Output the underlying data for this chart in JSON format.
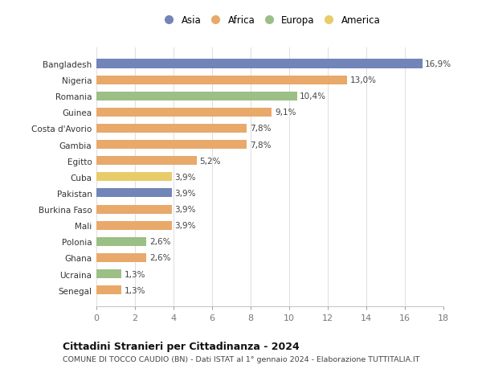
{
  "categories": [
    "Senegal",
    "Ucraina",
    "Ghana",
    "Polonia",
    "Mali",
    "Burkina Faso",
    "Pakistan",
    "Cuba",
    "Egitto",
    "Gambia",
    "Costa d'Avorio",
    "Guinea",
    "Romania",
    "Nigeria",
    "Bangladesh"
  ],
  "values": [
    1.3,
    1.3,
    2.6,
    2.6,
    3.9,
    3.9,
    3.9,
    3.9,
    5.2,
    7.8,
    7.8,
    9.1,
    10.4,
    13.0,
    16.9
  ],
  "colors": [
    "#e8a96a",
    "#9bbf85",
    "#e8a96a",
    "#9bbf85",
    "#e8a96a",
    "#e8a96a",
    "#7285b8",
    "#e8cc6a",
    "#e8a96a",
    "#e8a96a",
    "#e8a96a",
    "#e8a96a",
    "#9bbf85",
    "#e8a96a",
    "#7285b8"
  ],
  "labels": [
    "1,3%",
    "1,3%",
    "2,6%",
    "2,6%",
    "3,9%",
    "3,9%",
    "3,9%",
    "3,9%",
    "5,2%",
    "7,8%",
    "7,8%",
    "9,1%",
    "10,4%",
    "13,0%",
    "16,9%"
  ],
  "legend": [
    {
      "label": "Asia",
      "color": "#7285b8"
    },
    {
      "label": "Africa",
      "color": "#e8a96a"
    },
    {
      "label": "Europa",
      "color": "#9bbf85"
    },
    {
      "label": "America",
      "color": "#e8cc6a"
    }
  ],
  "title": "Cittadini Stranieri per Cittadinanza - 2024",
  "subtitle": "COMUNE DI TOCCO CAUDIO (BN) - Dati ISTAT al 1° gennaio 2024 - Elaborazione TUTTITALIA.IT",
  "xlim": [
    0,
    18
  ],
  "xticks": [
    0,
    2,
    4,
    6,
    8,
    10,
    12,
    14,
    16,
    18
  ],
  "background_color": "#ffffff",
  "grid_color": "#e0e0e0",
  "bar_height": 0.55
}
